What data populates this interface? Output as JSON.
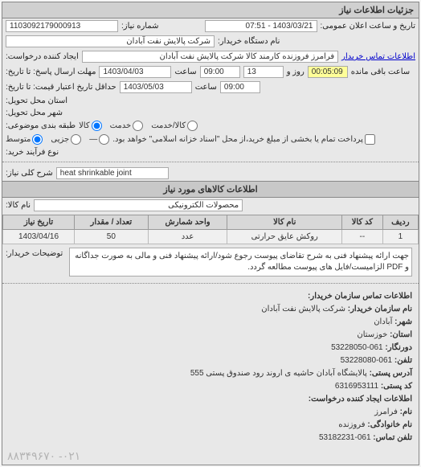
{
  "panel_title": "جزئیات اطلاعات نیاز",
  "fields": {
    "req_no_lbl": "شماره نیاز:",
    "req_no": "1103092179000913",
    "pub_date_lbl": "تاریخ و ساعت اعلان عمومی:",
    "pub_date": "1403/03/21 - 07:51",
    "buyer_org_lbl": "نام دستگاه خریدار:",
    "buyer_org": "شرکت پالایش نفت آبادان",
    "creator_lbl": "ایجاد کننده درخواست:",
    "creator": "فرامرز فروزنده کارمند کالا شرکت پالایش نفت آبادان",
    "contact_link": "اطلاعات تماس خریدار",
    "deadline_lbl": "مهلت ارسال پاسخ: تا تاریخ:",
    "deadline_date": "1403/04/03",
    "time_lbl": "ساعت",
    "deadline_time": "09:00",
    "days_lbl": "روز و",
    "days_val": "13",
    "remain_lbl": "ساعت باقی مانده",
    "remain_val": "00:05:09",
    "validity_lbl": "حداقل تاریخ اعتبار قیمت: تا تاریخ:",
    "validity_date": "1403/05/03",
    "validity_time": "09:00",
    "province_lbl": "استان محل تحویل:",
    "city_lbl": "شهر محل تحویل:",
    "category_lbl": "طبقه بندی موضوعی:",
    "cat_goods": "کالا",
    "cat_service": "خدمت",
    "cat_goods_service": "کالا/خدمت",
    "process_lbl": "نوع فرآیند خرید:",
    "proc_medium": "متوسط",
    "proc_small": "جزیی",
    "proc_na": "—",
    "cash_note": "پرداخت تمام یا بخشی از مبلغ خرید،از محل \"اسناد خزانه اسلامی\" خواهد بود.",
    "subject_lbl": "شرح کلی نیاز:",
    "subject": "heat shrinkable joint",
    "items_title": "اطلاعات کالاهای مورد نیاز",
    "goods_name_lbl": "نام کالا:",
    "goods_name": "محصولات الکترونیکی"
  },
  "table": {
    "headers": [
      "ردیف",
      "کد کالا",
      "نام کالا",
      "واحد شمارش",
      "تعداد / مقدار",
      "تاریخ نیاز"
    ],
    "rows": [
      [
        "1",
        "--",
        "روکش عایق حرارتی",
        "عدد",
        "50",
        "1403/04/16"
      ]
    ]
  },
  "buyer_desc": {
    "lbl": "توضیحات خریدار:",
    "text": "جهت ارائه پیشنهاد فنی به شرح تقاضای پیوست رجوع شود/ارائه پیشنهاد فنی و مالی به صورت جداگانه و PDF الزامیست/فایل های پیوست مطالعه گردد."
  },
  "contact": {
    "title": "اطلاعات تماس سازمان خریدار:",
    "org_lbl": "نام سازمان خریدار:",
    "org": "شرکت پالایش نفت آبادان",
    "city_lbl2": "شهر:",
    "city2": "آبادان",
    "province_lbl2": "استان:",
    "province2": "خوزستان",
    "fax_lbl": "دورنگار:",
    "fax": "061-53228050",
    "phone_lbl": "تلفن:",
    "phone": "061-53228080",
    "addr_lbl": "آدرس پستی:",
    "addr": "پالایشگاه آبادان حاشیه ی اروند رود صندوق پستی 555",
    "post_lbl": "کد پستی:",
    "post": "6316953111",
    "creator_info_title": "اطلاعات ایجاد کننده درخواست:",
    "name_lbl": "نام:",
    "name": "فرامرز",
    "lname_lbl": "نام خانوادگی:",
    "lname": "فروزنده",
    "cphone_lbl": "تلفن تماس:",
    "cphone": "061-53182231"
  },
  "footer_phone": "۸۸۳۴۹۶۷۰ -۰۲۱"
}
